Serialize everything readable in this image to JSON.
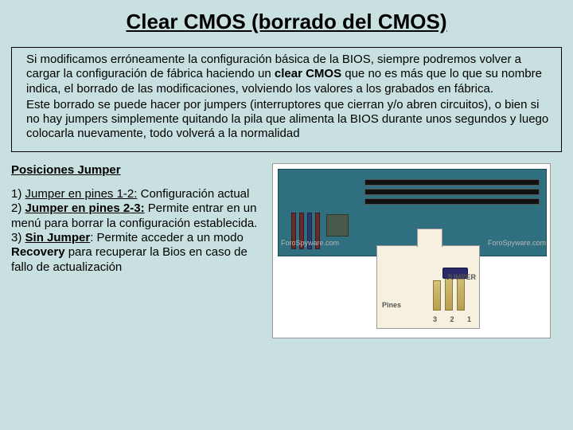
{
  "title": "Clear CMOS (borrado del CMOS)",
  "paragraph1_pre": "Si modificamos erróneamente la configuración básica de la BIOS, siempre podremos volver a cargar la configuración de fábrica haciendo un ",
  "paragraph1_bold": "clear CMOS",
  "paragraph1_post": " que no es más que lo que su nombre indica, el borrado de las modificaciones, volviendo los valores a los grabados en fábrica.",
  "paragraph2": "Este borrado se puede hacer por jumpers (interruptores que cierran y/o abren circuitos), o bien si no hay jumpers simplemente quitando la pila que alimenta la BIOS durante unos segundos y luego colocarla nuevamente, todo volverá a la normalidad",
  "subheading": "Posiciones Jumper",
  "item1_num": "1) ",
  "item1_label": "Jumper en pines 1-2:",
  "item1_text": " Configuración actual",
  "item2_num": "2) ",
  "item2_label": "Jumper en pines 2-3:",
  "item2_text": " Permite entrar en un menú para borrar la configuración establecida.",
  "item3_num": "3) ",
  "item3_label": "Sin Jumper",
  "item3_mid": ": Permite acceder a un modo ",
  "item3_bold": "Recovery",
  "item3_text": " para recuperar la Bios en caso de fallo de actualización",
  "img": {
    "label_jumper": "JUMPER",
    "label_pines": "Pines",
    "label_nums": "3 2 1",
    "watermark": "ForoSpyware.com"
  }
}
